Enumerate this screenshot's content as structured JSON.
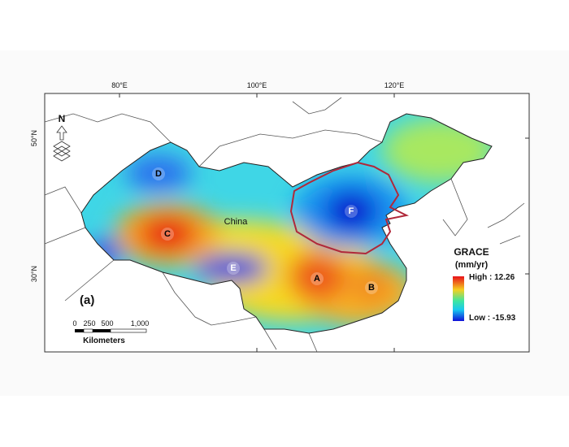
{
  "graticule": {
    "longitudes": [
      "80°E",
      "100°E",
      "120°E"
    ],
    "latitudes": [
      "50°N",
      "30°N"
    ]
  },
  "map": {
    "panel_label": "(a)",
    "country_label": "China",
    "north_label": "N",
    "regions": [
      "A",
      "B",
      "C",
      "D",
      "E",
      "F"
    ]
  },
  "legend": {
    "title": "GRACE",
    "unit": "(mm/yr)",
    "high": "High : 12.26",
    "low": "Low : -15.93"
  },
  "scale_bar": {
    "ticks": [
      "0",
      "250",
      "500",
      "1,000"
    ],
    "unit": "Kilometers"
  }
}
